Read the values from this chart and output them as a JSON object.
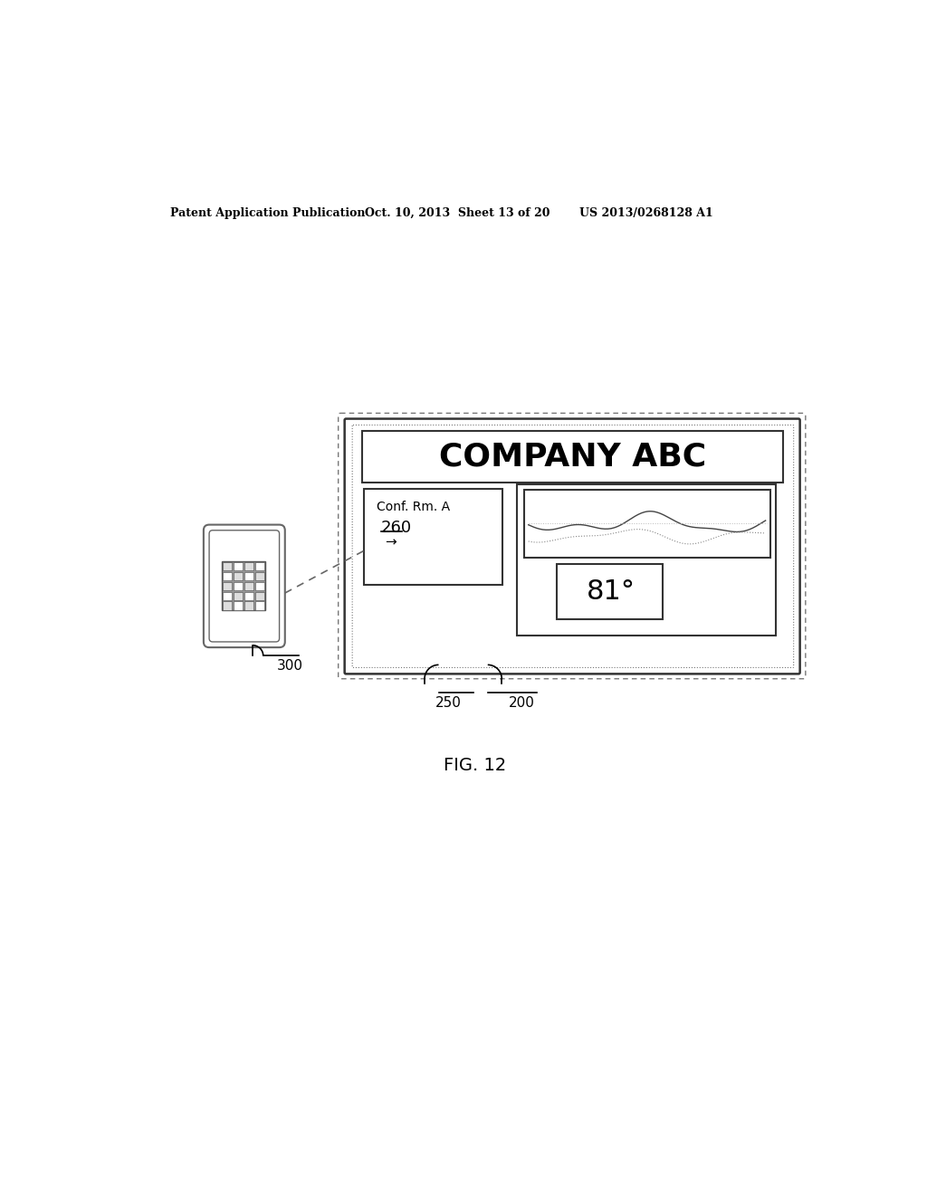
{
  "bg_color": "#ffffff",
  "header_text1": "Patent Application Publication",
  "header_text2": "Oct. 10, 2013  Sheet 13 of 20",
  "header_text3": "US 2013/0268128 A1",
  "fig_label": "FIG. 12",
  "company_text": "COMPANY ABC",
  "conf_rm_text": "Conf. Rm. A",
  "number_260": "260",
  "arrow_right": "→",
  "temp_text": "81°",
  "label_250": "250",
  "label_200": "200",
  "label_300": "300"
}
